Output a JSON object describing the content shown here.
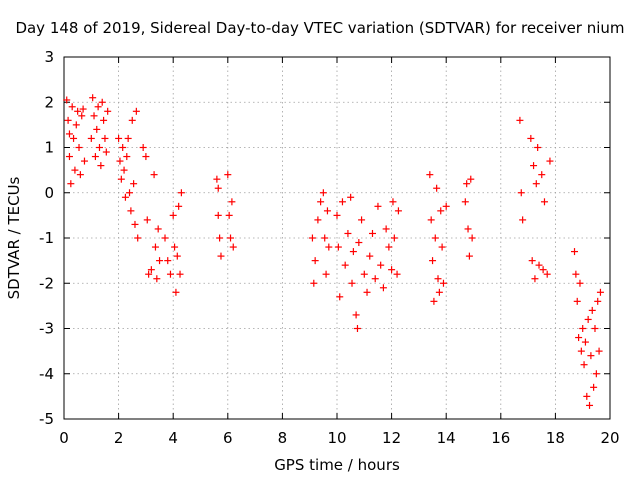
{
  "chart_data": {
    "type": "scatter",
    "title": "Day 148 of 2019, Sidereal Day-to-day VTEC variation (SDTVAR) for receiver nium",
    "xlabel": "GPS time / hours",
    "ylabel": "SDTVAR / TECUs",
    "xlim": [
      0,
      20
    ],
    "ylim": [
      -5,
      3
    ],
    "xticks": [
      "0",
      "2",
      "4",
      "6",
      "8",
      "10",
      "12",
      "14",
      "16",
      "18",
      "20"
    ],
    "yticks": [
      "-5",
      "-4",
      "-3",
      "-2",
      "-1",
      "0",
      "1",
      "2",
      "3"
    ],
    "grid": true,
    "marker": "+",
    "color": "#ff0000",
    "series": [
      {
        "name": "SDTVAR",
        "points": [
          [
            0.1,
            2.05
          ],
          [
            0.15,
            1.6
          ],
          [
            0.2,
            0.8
          ],
          [
            0.2,
            1.3
          ],
          [
            0.25,
            0.2
          ],
          [
            0.3,
            1.9
          ],
          [
            0.35,
            1.2
          ],
          [
            0.4,
            0.5
          ],
          [
            0.45,
            1.5
          ],
          [
            0.5,
            1.8
          ],
          [
            0.55,
            1.0
          ],
          [
            0.6,
            0.4
          ],
          [
            0.65,
            1.7
          ],
          [
            0.7,
            1.85
          ],
          [
            0.75,
            0.7
          ],
          [
            1.0,
            1.2
          ],
          [
            1.05,
            2.1
          ],
          [
            1.1,
            1.7
          ],
          [
            1.15,
            0.8
          ],
          [
            1.2,
            1.4
          ],
          [
            1.25,
            1.9
          ],
          [
            1.3,
            1.0
          ],
          [
            1.35,
            0.6
          ],
          [
            1.4,
            2.0
          ],
          [
            1.45,
            1.6
          ],
          [
            1.5,
            1.2
          ],
          [
            1.55,
            0.9
          ],
          [
            1.6,
            1.8
          ],
          [
            2.0,
            1.2
          ],
          [
            2.05,
            0.7
          ],
          [
            2.1,
            0.3
          ],
          [
            2.15,
            1.0
          ],
          [
            2.2,
            0.5
          ],
          [
            2.25,
            -0.1
          ],
          [
            2.3,
            0.8
          ],
          [
            2.35,
            1.2
          ],
          [
            2.4,
            0.0
          ],
          [
            2.45,
            -0.4
          ],
          [
            2.5,
            1.6
          ],
          [
            2.55,
            0.2
          ],
          [
            2.6,
            -0.7
          ],
          [
            2.65,
            1.8
          ],
          [
            2.7,
            -1.0
          ],
          [
            2.9,
            1.0
          ],
          [
            3.0,
            0.8
          ],
          [
            3.05,
            -0.6
          ],
          [
            3.1,
            -1.8
          ],
          [
            3.2,
            -1.7
          ],
          [
            3.3,
            0.4
          ],
          [
            3.35,
            -1.2
          ],
          [
            3.4,
            -1.9
          ],
          [
            3.45,
            -0.8
          ],
          [
            3.5,
            -1.5
          ],
          [
            3.7,
            -1.0
          ],
          [
            3.8,
            -1.5
          ],
          [
            3.9,
            -1.8
          ],
          [
            4.0,
            -0.5
          ],
          [
            4.05,
            -1.2
          ],
          [
            4.1,
            -2.2
          ],
          [
            4.15,
            -1.4
          ],
          [
            4.2,
            -0.3
          ],
          [
            4.25,
            -1.8
          ],
          [
            4.3,
            0.0
          ],
          [
            5.6,
            0.3
          ],
          [
            5.65,
            -0.5
          ],
          [
            5.7,
            -1.0
          ],
          [
            5.75,
            -1.4
          ],
          [
            5.65,
            0.1
          ],
          [
            6.0,
            0.4
          ],
          [
            6.05,
            -0.5
          ],
          [
            6.1,
            -1.0
          ],
          [
            6.15,
            -0.2
          ],
          [
            6.2,
            -1.2
          ],
          [
            9.1,
            -1.0
          ],
          [
            9.15,
            -2.0
          ],
          [
            9.2,
            -1.5
          ],
          [
            9.3,
            -0.6
          ],
          [
            9.4,
            -0.2
          ],
          [
            9.5,
            0.0
          ],
          [
            9.55,
            -1.0
          ],
          [
            9.6,
            -1.8
          ],
          [
            9.65,
            -0.4
          ],
          [
            9.7,
            -1.2
          ],
          [
            10.0,
            -0.5
          ],
          [
            10.05,
            -1.2
          ],
          [
            10.1,
            -2.3
          ],
          [
            10.2,
            -0.2
          ],
          [
            10.3,
            -1.6
          ],
          [
            10.4,
            -0.9
          ],
          [
            10.5,
            -0.1
          ],
          [
            10.55,
            -2.0
          ],
          [
            10.6,
            -1.3
          ],
          [
            10.7,
            -2.7
          ],
          [
            10.75,
            -3.0
          ],
          [
            10.8,
            -1.1
          ],
          [
            10.9,
            -0.6
          ],
          [
            11.0,
            -1.8
          ],
          [
            11.1,
            -2.2
          ],
          [
            11.2,
            -1.4
          ],
          [
            11.3,
            -0.9
          ],
          [
            11.4,
            -1.9
          ],
          [
            11.5,
            -0.3
          ],
          [
            11.6,
            -1.6
          ],
          [
            11.7,
            -2.1
          ],
          [
            11.8,
            -0.8
          ],
          [
            11.9,
            -1.2
          ],
          [
            12.0,
            -1.7
          ],
          [
            12.05,
            -0.2
          ],
          [
            12.1,
            -1.0
          ],
          [
            12.2,
            -1.8
          ],
          [
            12.25,
            -0.4
          ],
          [
            13.4,
            0.4
          ],
          [
            13.45,
            -0.6
          ],
          [
            13.5,
            -1.5
          ],
          [
            13.55,
            -2.4
          ],
          [
            13.6,
            -1.0
          ],
          [
            13.65,
            0.1
          ],
          [
            13.7,
            -1.9
          ],
          [
            13.75,
            -2.2
          ],
          [
            13.8,
            -0.4
          ],
          [
            13.85,
            -1.2
          ],
          [
            13.9,
            -2.0
          ],
          [
            14.0,
            -0.3
          ],
          [
            14.7,
            -0.2
          ],
          [
            14.75,
            0.2
          ],
          [
            14.8,
            -0.8
          ],
          [
            14.85,
            -1.4
          ],
          [
            14.9,
            0.3
          ],
          [
            14.95,
            -1.0
          ],
          [
            16.7,
            1.6
          ],
          [
            16.75,
            0.0
          ],
          [
            16.8,
            -0.6
          ],
          [
            17.1,
            1.2
          ],
          [
            17.15,
            -1.5
          ],
          [
            17.2,
            0.6
          ],
          [
            17.25,
            -1.9
          ],
          [
            17.3,
            0.2
          ],
          [
            17.35,
            1.0
          ],
          [
            17.4,
            -1.6
          ],
          [
            17.5,
            0.4
          ],
          [
            17.55,
            -1.7
          ],
          [
            17.6,
            -0.2
          ],
          [
            17.7,
            -1.8
          ],
          [
            17.8,
            0.7
          ],
          [
            18.7,
            -1.3
          ],
          [
            18.75,
            -1.8
          ],
          [
            18.8,
            -2.4
          ],
          [
            18.85,
            -3.2
          ],
          [
            18.9,
            -2.0
          ],
          [
            18.95,
            -3.5
          ],
          [
            19.0,
            -3.0
          ],
          [
            19.05,
            -3.8
          ],
          [
            19.1,
            -3.3
          ],
          [
            19.15,
            -4.5
          ],
          [
            19.2,
            -2.8
          ],
          [
            19.25,
            -4.7
          ],
          [
            19.3,
            -3.6
          ],
          [
            19.35,
            -2.6
          ],
          [
            19.4,
            -4.3
          ],
          [
            19.45,
            -3.0
          ],
          [
            19.5,
            -4.0
          ],
          [
            19.55,
            -2.4
          ],
          [
            19.6,
            -3.5
          ],
          [
            19.65,
            -2.2
          ]
        ]
      }
    ]
  }
}
